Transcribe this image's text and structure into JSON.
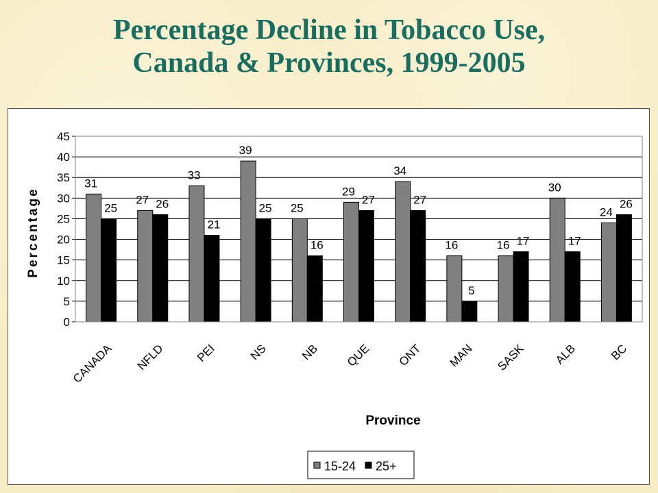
{
  "slide": {
    "title_line1": "Percentage Decline in Tobacco Use,",
    "title_line2": "Canada & Provinces, 1999-2005"
  },
  "colors": {
    "background": "#f6ecc6",
    "title": "#1a6e61",
    "series_15_24": "#808080",
    "series_25_plus": "#000000"
  },
  "chart_data": {
    "type": "bar",
    "title": "",
    "xlabel": "Province",
    "ylabel": "Percentage",
    "ylim": [
      0,
      45
    ],
    "yticks": [
      0,
      5,
      10,
      15,
      20,
      25,
      30,
      35,
      40,
      45
    ],
    "grid": true,
    "legend_position": "bottom",
    "categories": [
      "CANADA",
      "NFLD",
      "PEI",
      "NS",
      "NB",
      "QUE",
      "ONT",
      "MAN",
      "SASK",
      "ALB",
      "BC"
    ],
    "series": [
      {
        "name": "15-24",
        "values": [
          31,
          27,
          33,
          39,
          25,
          29,
          34,
          16,
          16,
          30,
          24
        ]
      },
      {
        "name": "25+",
        "values": [
          25,
          26,
          21,
          25,
          16,
          27,
          27,
          5,
          17,
          17,
          26
        ]
      }
    ]
  }
}
